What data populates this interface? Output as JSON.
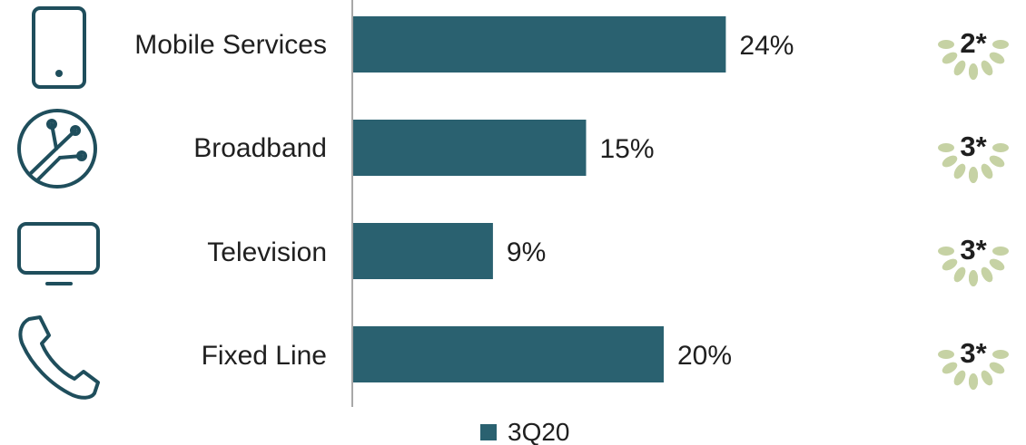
{
  "chart_data": {
    "type": "bar",
    "orientation": "horizontal",
    "categories": [
      "Mobile Services",
      "Broadband",
      "Television",
      "Fixed Line"
    ],
    "series": [
      {
        "name": "3Q20",
        "values": [
          24,
          15,
          9,
          20
        ]
      }
    ],
    "value_labels": [
      "24%",
      "15%",
      "9%",
      "20%"
    ],
    "ranks": [
      "2*",
      "3*",
      "3*",
      "3*"
    ],
    "xlim": [
      0,
      45
    ],
    "grid": false,
    "legend_position": "bottom-center",
    "bar_color": "#2a6170"
  },
  "icons": [
    "phone-icon",
    "fiber-cable-icon",
    "tv-icon",
    "telephone-handset-icon"
  ],
  "colors": {
    "bar": "#2a6170",
    "icon_stroke": "#1f4e5c",
    "laurel": "#c6d2a4",
    "axis": "#8c8c8c"
  }
}
